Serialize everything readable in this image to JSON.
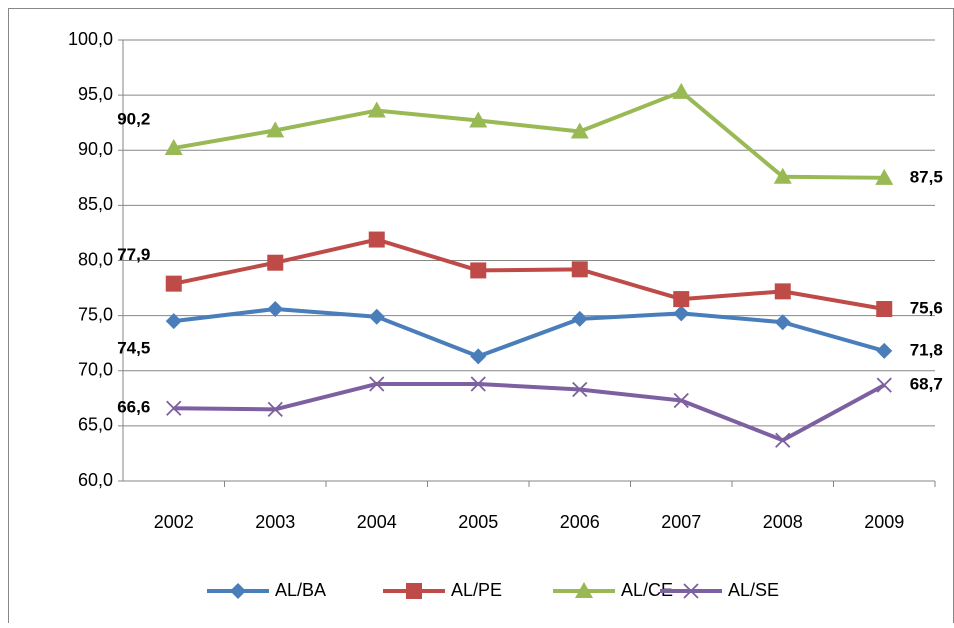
{
  "chart_data": {
    "type": "line",
    "categories": [
      "2002",
      "2003",
      "2004",
      "2005",
      "2006",
      "2007",
      "2008",
      "2009"
    ],
    "ylim": [
      60,
      100
    ],
    "yticks": [
      {
        "value": 60,
        "label": "60,0"
      },
      {
        "value": 65,
        "label": "65,0"
      },
      {
        "value": 70,
        "label": "70,0"
      },
      {
        "value": 75,
        "label": "75,0"
      },
      {
        "value": 80,
        "label": "80,0"
      },
      {
        "value": 85,
        "label": "85,0"
      },
      {
        "value": 90,
        "label": "90,0"
      },
      {
        "value": 95,
        "label": "95,0"
      },
      {
        "value": 100,
        "label": "100,0"
      }
    ],
    "grid": true,
    "legend": "bottom",
    "series": [
      {
        "name": "AL/BA",
        "color": "#4a7ebb",
        "marker": "diamond",
        "values": [
          74.5,
          75.6,
          74.9,
          71.3,
          74.7,
          75.2,
          74.4,
          71.8
        ],
        "value_labels": [
          "74,5",
          null,
          null,
          null,
          null,
          null,
          null,
          "71,8"
        ]
      },
      {
        "name": "AL/PE",
        "color": "#be4b48",
        "marker": "square",
        "values": [
          77.9,
          79.8,
          81.9,
          79.1,
          79.2,
          76.5,
          77.2,
          75.6
        ],
        "value_labels": [
          "77,9",
          null,
          null,
          null,
          null,
          null,
          null,
          "75,6"
        ]
      },
      {
        "name": "AL/CE",
        "color": "#98b954",
        "marker": "triangle",
        "values": [
          90.2,
          91.8,
          93.6,
          92.7,
          91.7,
          95.3,
          87.6,
          87.5
        ],
        "value_labels": [
          "90,2",
          null,
          null,
          null,
          null,
          null,
          null,
          "87,5"
        ]
      },
      {
        "name": "AL/SE",
        "color": "#7d60a0",
        "marker": "x",
        "values": [
          66.6,
          66.5,
          68.8,
          68.8,
          68.3,
          67.3,
          63.7,
          68.7
        ],
        "value_labels": [
          "66,6",
          null,
          null,
          null,
          null,
          null,
          null,
          "68,7"
        ]
      }
    ]
  }
}
